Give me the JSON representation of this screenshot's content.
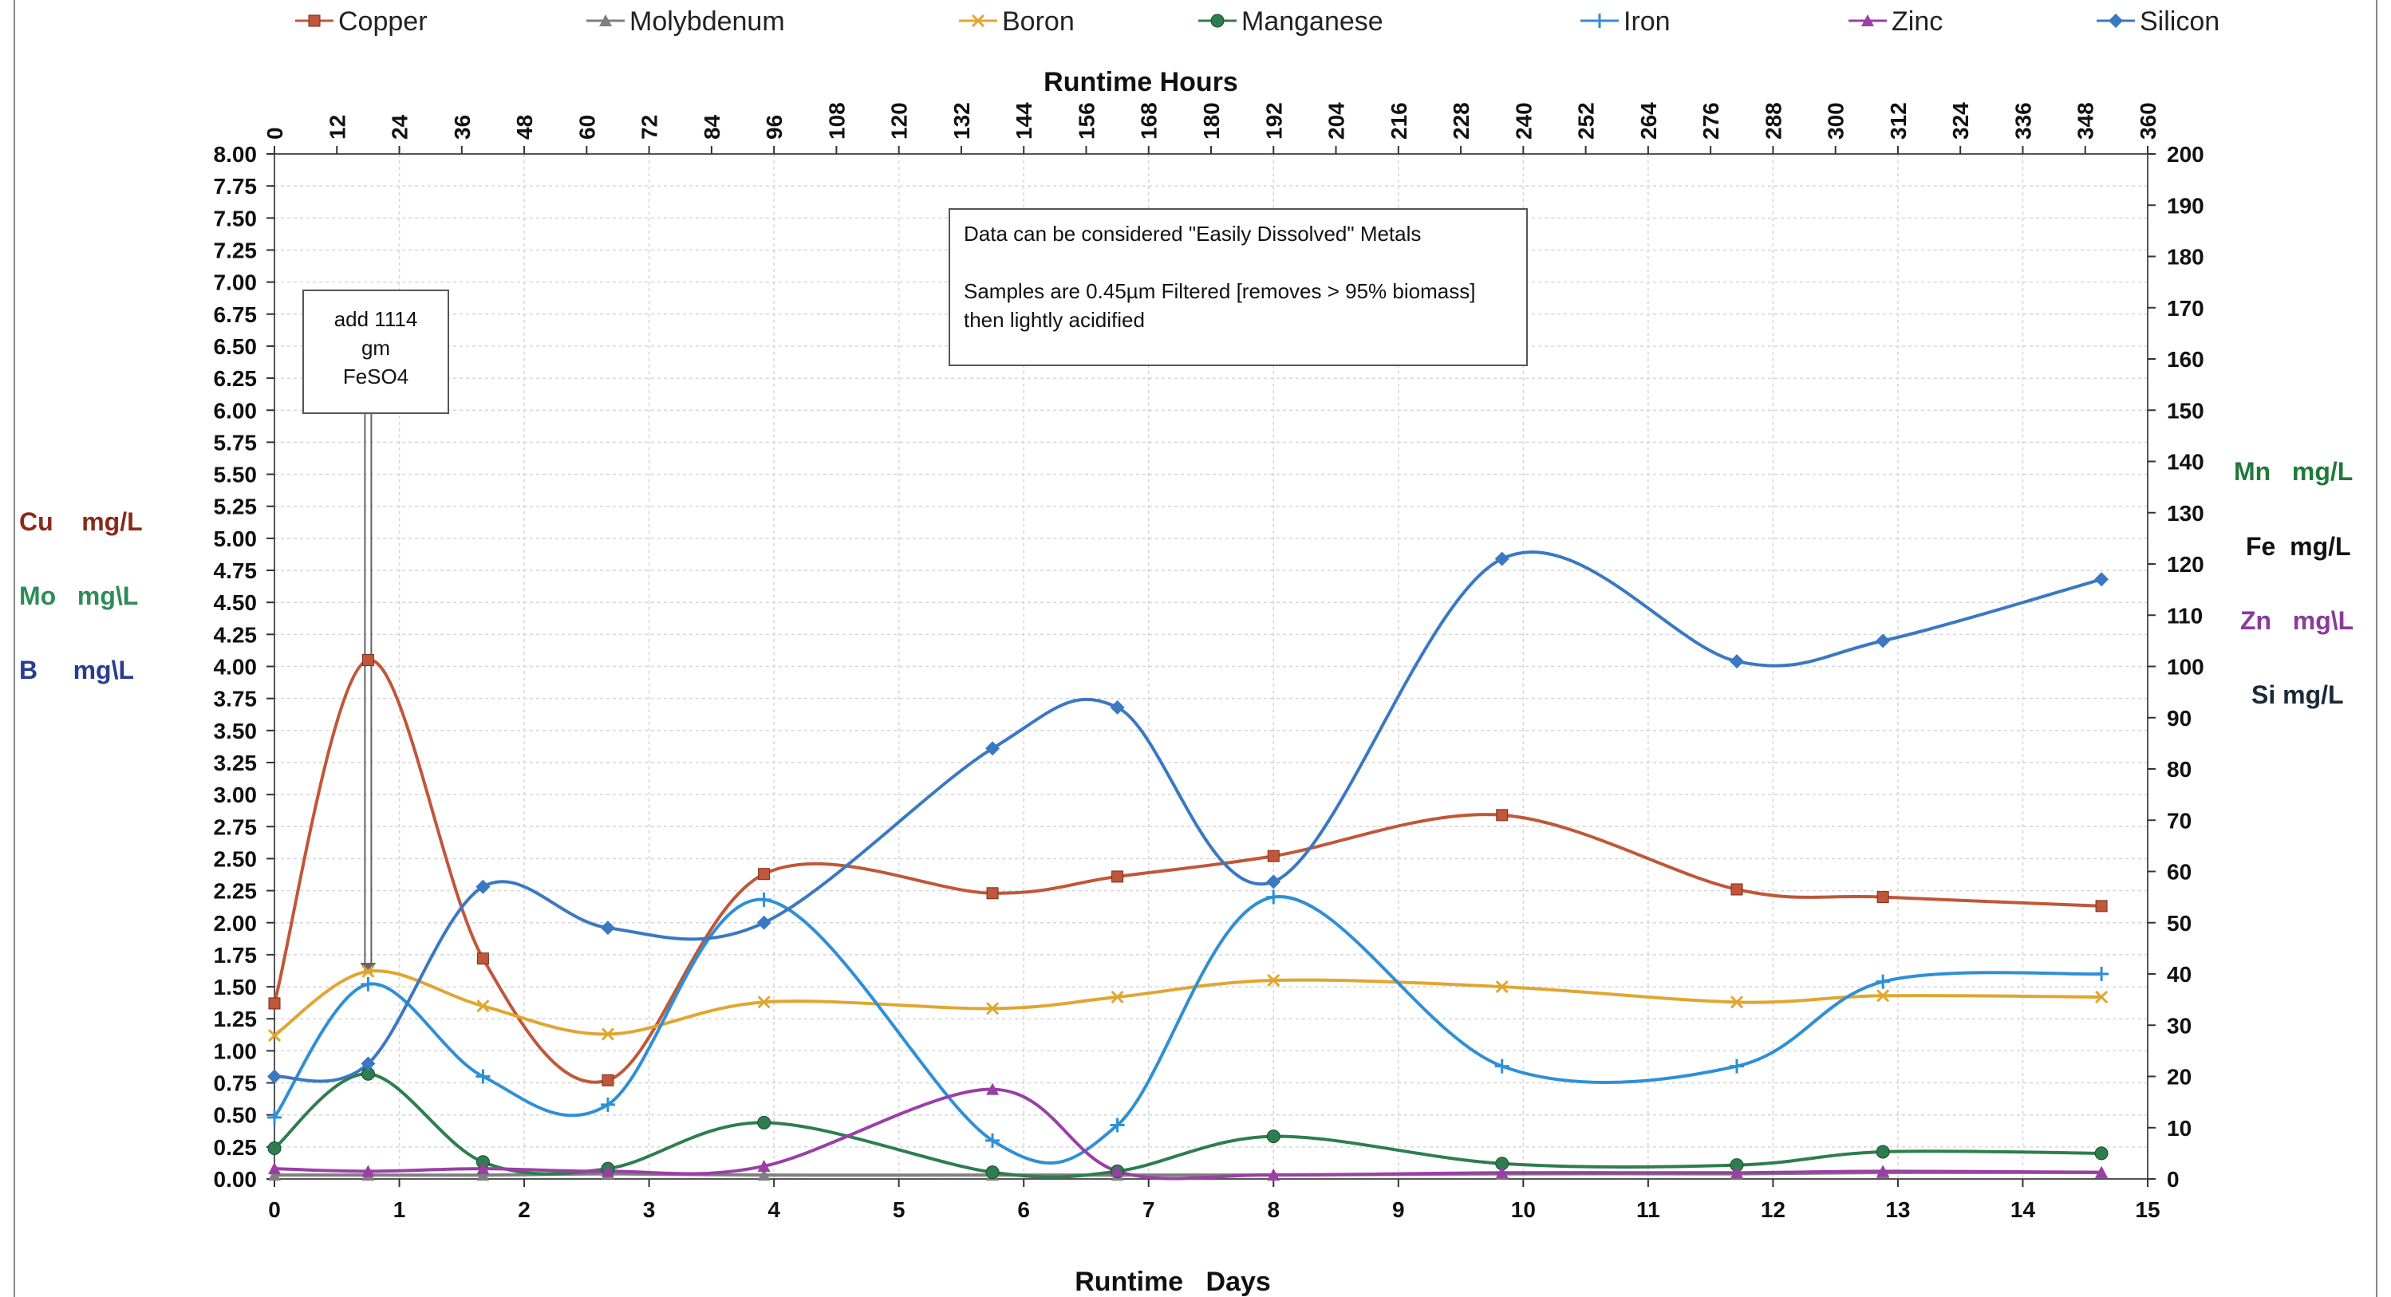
{
  "chart_data": {
    "type": "line",
    "x_bottom": {
      "label": "Runtime   Days",
      "min": 0,
      "max": 15,
      "ticks": [
        0,
        1,
        2,
        3,
        4,
        5,
        6,
        7,
        8,
        9,
        10,
        11,
        12,
        13,
        14,
        15
      ]
    },
    "x_top": {
      "label": "Runtime Hours",
      "min": 0,
      "max": 360,
      "ticks": [
        0,
        12,
        24,
        36,
        48,
        60,
        72,
        84,
        96,
        108,
        120,
        132,
        144,
        156,
        168,
        180,
        192,
        204,
        216,
        228,
        240,
        252,
        264,
        276,
        288,
        300,
        312,
        324,
        336,
        348,
        360
      ]
    },
    "y_left": {
      "min": 0,
      "max": 8,
      "step": 0.25,
      "tick_labels": [
        "0.00",
        "0.25",
        "0.50",
        "0.75",
        "1.00",
        "1.25",
        "1.50",
        "1.75",
        "2.00",
        "2.25",
        "2.50",
        "2.75",
        "3.00",
        "3.25",
        "3.50",
        "3.75",
        "4.00",
        "4.25",
        "4.50",
        "4.75",
        "5.00",
        "5.25",
        "5.50",
        "5.75",
        "6.00",
        "6.25",
        "6.50",
        "6.75",
        "7.00",
        "7.25",
        "7.50",
        "7.75",
        "8.00"
      ]
    },
    "y_right": {
      "min": 0,
      "max": 200,
      "step": 10,
      "tick_labels": [
        "0",
        "10",
        "20",
        "30",
        "40",
        "50",
        "60",
        "70",
        "80",
        "90",
        "100",
        "110",
        "120",
        "130",
        "140",
        "150",
        "160",
        "170",
        "180",
        "190",
        "200"
      ]
    },
    "left_axis_labels": [
      {
        "text": "Cu    mg/L",
        "color": "#8b2a1a"
      },
      {
        "text": "Mo   mg\\L",
        "color": "#2e8b57"
      },
      {
        "text": "B     mg\\L",
        "color": "#2a3c8f"
      }
    ],
    "right_axis_labels": [
      {
        "text": "Mn   mg/L",
        "color": "#1f7a3a"
      },
      {
        "text": "Fe  mg/L",
        "color": "#111111"
      },
      {
        "text": "Zn   mg\\L",
        "color": "#8b3a9a"
      },
      {
        "text": "Si mg/L",
        "color": "#1a2a3a"
      }
    ],
    "annotations": [
      {
        "lines": [
          "add 1114",
          "gm",
          "FeSO4"
        ],
        "arrow_x_day": 0.75,
        "arrow_y": 1.6
      },
      {
        "lines": [
          "Data can be considered \"Easily Dissolved\" Metals",
          "",
          "Samples are 0.45µm Filtered  [removes > 95% biomass]",
          "then lightly acidified"
        ]
      }
    ],
    "grid": true,
    "legend_position": "top",
    "series": [
      {
        "name": "Copper",
        "axis": "left",
        "color": "#c0573a",
        "marker": "square",
        "x": [
          0,
          0.75,
          1.67,
          2.67,
          3.92,
          5.75,
          6.75,
          8.0,
          9.83,
          11.71,
          12.88,
          14.63
        ],
        "y": [
          1.37,
          4.05,
          1.72,
          0.77,
          2.38,
          2.23,
          2.36,
          2.52,
          2.84,
          2.26,
          2.2,
          2.13
        ]
      },
      {
        "name": "Molybdenum",
        "axis": "left",
        "color": "#7f7f7f",
        "marker": "triangle",
        "x": [
          0,
          0.75,
          1.67,
          2.67,
          3.92,
          5.75,
          6.75,
          8.0,
          9.83,
          11.71,
          12.88,
          14.63
        ],
        "y": [
          0.03,
          0.03,
          0.03,
          0.04,
          0.03,
          0.03,
          0.03,
          0.03,
          0.04,
          0.04,
          0.05,
          0.05
        ]
      },
      {
        "name": "Boron",
        "axis": "left",
        "color": "#e0a630",
        "marker": "x",
        "x": [
          0,
          0.75,
          1.67,
          2.67,
          3.92,
          5.75,
          6.75,
          8.0,
          9.83,
          11.71,
          12.88,
          14.63
        ],
        "y": [
          1.12,
          1.62,
          1.35,
          1.13,
          1.38,
          1.33,
          1.42,
          1.55,
          1.5,
          1.38,
          1.43,
          1.42
        ]
      },
      {
        "name": "Manganese",
        "axis": "right",
        "color": "#2e7d4f",
        "marker": "circle",
        "x": [
          0,
          0.75,
          1.67,
          2.67,
          3.92,
          5.75,
          6.75,
          8.0,
          9.83,
          11.71,
          12.88,
          14.63
        ],
        "y": [
          6,
          20.5,
          3.3,
          2,
          11,
          1.3,
          1.5,
          8.3,
          3,
          2.7,
          5.3,
          5
        ]
      },
      {
        "name": "Iron",
        "axis": "right",
        "color": "#2f8fd6",
        "marker": "plus",
        "x": [
          0,
          0.75,
          1.67,
          2.67,
          3.92,
          5.75,
          6.75,
          8.0,
          9.83,
          11.71,
          12.88,
          14.63
        ],
        "y": [
          12,
          38,
          20,
          14.5,
          54.5,
          7.5,
          10.5,
          55,
          22,
          22,
          38.5,
          40
        ]
      },
      {
        "name": "Zinc",
        "axis": "right",
        "color": "#9a3fa5",
        "marker": "triangle",
        "x": [
          0,
          0.75,
          1.67,
          2.67,
          3.92,
          5.75,
          6.75,
          8.0,
          9.83,
          11.71,
          12.88,
          14.63
        ],
        "y": [
          2,
          1.5,
          2,
          1.5,
          2.5,
          17.5,
          1.5,
          0.8,
          1.2,
          1.2,
          1.5,
          1.3
        ]
      },
      {
        "name": "Silicon",
        "axis": "right",
        "color": "#3a78c2",
        "marker": "diamond",
        "x": [
          0,
          0.75,
          1.67,
          2.67,
          3.92,
          5.75,
          6.75,
          8.0,
          9.83,
          11.71,
          12.88,
          14.63
        ],
        "y": [
          20,
          22.5,
          57,
          49,
          50,
          84,
          92,
          58,
          121,
          101,
          105,
          117
        ]
      }
    ]
  }
}
